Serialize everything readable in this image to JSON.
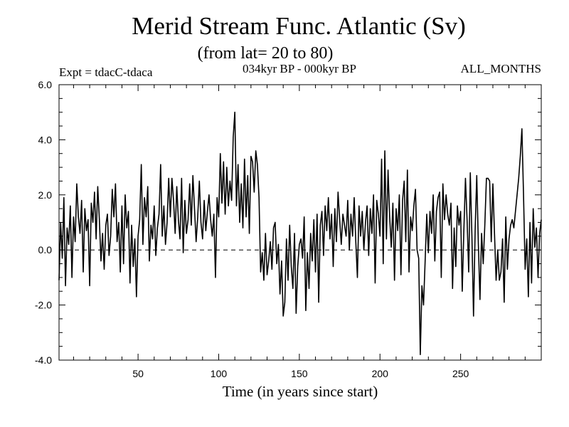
{
  "chart_data": {
    "type": "line",
    "title": "Merid Stream Func. Atlantic (Sv)",
    "subtitle": "(from lat= 20 to 80)",
    "experiment_label": "Expt = tdacC-tdaca",
    "period_label": "034kyr BP - 000kyr BP",
    "months_label": "ALL_MONTHS",
    "xlabel": "Time (in years since start)",
    "ylabel": "",
    "xlim": [
      1,
      300
    ],
    "ylim": [
      -4.0,
      6.0
    ],
    "x_ticks": [
      50,
      100,
      150,
      200,
      250
    ],
    "x_tick_labels": [
      "50",
      "100",
      "150",
      "200",
      "250"
    ],
    "y_ticks": [
      -4.0,
      -2.0,
      0.0,
      2.0,
      4.0,
      6.0
    ],
    "y_tick_labels": [
      "-4.0",
      "-2.0",
      "0.0",
      "2.0",
      "4.0",
      "6.0"
    ],
    "reference_line": 0.0,
    "grid": false,
    "series": [
      {
        "name": "Merid Stream Func. Atlantic",
        "x_start": 1,
        "x_step": 1,
        "values": [
          -1.1,
          1.0,
          -0.3,
          1.9,
          -1.3,
          0.8,
          0.2,
          1.6,
          -1.0,
          1.2,
          0.3,
          2.4,
          1.2,
          0.6,
          1.8,
          -0.8,
          1.5,
          0.7,
          1.1,
          -1.3,
          1.7,
          1.0,
          2.1,
          0.4,
          2.3,
          1.1,
          -0.4,
          0.6,
          -0.7,
          0.9,
          1.3,
          -0.2,
          0.5,
          2.2,
          1.2,
          2.4,
          0.3,
          1.0,
          -0.8,
          1.6,
          -0.5,
          2.0,
          0.8,
          1.4,
          -1.2,
          0.9,
          -0.6,
          0.4,
          -1.7,
          0.5,
          1.1,
          3.1,
          0.2,
          1.9,
          1.2,
          2.3,
          -0.4,
          0.9,
          0.4,
          1.6,
          -0.2,
          0.8,
          1.3,
          3.1,
          0.5,
          1.6,
          0.2,
          1.0,
          2.6,
          1.2,
          2.6,
          1.8,
          0.6,
          2.3,
          1.1,
          0.4,
          2.6,
          -0.1,
          1.8,
          0.6,
          1.1,
          2.4,
          0.9,
          2.7,
          1.5,
          0.3,
          1.2,
          2.5,
          1.0,
          0.4,
          1.8,
          0.7,
          1.4,
          2.0,
          1.1,
          0.5,
          1.3,
          -1.0,
          1.9,
          1.2,
          3.5,
          1.7,
          3.2,
          1.3,
          3.0,
          1.6,
          2.5,
          1.8,
          4.1,
          5.0,
          1.6,
          3.1,
          1.0,
          2.4,
          0.8,
          3.3,
          1.2,
          2.7,
          0.6,
          3.4,
          3.2,
          2.1,
          3.6,
          3.1,
          1.9,
          -0.8,
          -0.1,
          -1.1,
          0.6,
          -0.9,
          -0.4,
          0.3,
          -0.7,
          0.8,
          1.0,
          -0.5,
          0.2,
          -1.6,
          -0.4,
          -2.4,
          -1.9,
          0.4,
          -1.1,
          0.9,
          -0.6,
          -1.4,
          0.6,
          -2.3,
          -0.6,
          0.2,
          0.4,
          -0.3,
          1.2,
          -2.2,
          -0.1,
          -1.4,
          0.6,
          -0.4,
          1.1,
          -0.8,
          1.3,
          -1.9,
          0.9,
          1.4,
          -0.2,
          1.6,
          0.7,
          1.9,
          0.4,
          1.3,
          -0.6,
          1.5,
          0.3,
          2.1,
          1.1,
          0.2,
          1.3,
          0.9,
          0.5,
          1.8,
          0.0,
          1.3,
          0.5,
          1.9,
          0.3,
          -1.0,
          1.6,
          0.5,
          1.4,
          0.0,
          1.0,
          1.6,
          -0.2,
          1.5,
          0.6,
          2.0,
          -1.2,
          1.8,
          1.3,
          0.5,
          3.3,
          -0.5,
          3.6,
          0.4,
          2.9,
          1.2,
          0.1,
          1.7,
          -1.1,
          1.5,
          0.7,
          2.0,
          -0.9,
          1.8,
          2.5,
          0.3,
          2.9,
          -0.8,
          1.2,
          0.7,
          1.6,
          2.2,
          0.0,
          -0.3,
          -3.8,
          -1.3,
          -2.0,
          -0.4,
          1.3,
          -0.1,
          1.4,
          0.6,
          2.0,
          -0.4,
          1.4,
          1.9,
          2.1,
          -1.0,
          2.4,
          1.1,
          2.0,
          1.3,
          0.9,
          1.7,
          -1.4,
          0.8,
          -0.6,
          1.6,
          0.9,
          1.4,
          -1.5,
          0.7,
          2.6,
          1.1,
          -0.8,
          2.8,
          0.5,
          -2.4,
          0.7,
          2.7,
          0.2,
          -1.8,
          0.6,
          -0.5,
          0.9,
          2.6,
          2.6,
          2.5,
          0.3,
          2.4,
          0.6,
          -1.1,
          0.0,
          -1.1,
          -0.8,
          0.4,
          -1.9,
          1.2,
          -0.7,
          0.4,
          0.9,
          1.1,
          0.8,
          1.4,
          2.0,
          2.6,
          3.4,
          4.4,
          2.0,
          -0.7,
          0.4,
          -1.7,
          1.0,
          -1.2,
          1.5,
          0.1,
          0.8,
          -1.0,
          0.6,
          1.1
        ]
      }
    ]
  }
}
